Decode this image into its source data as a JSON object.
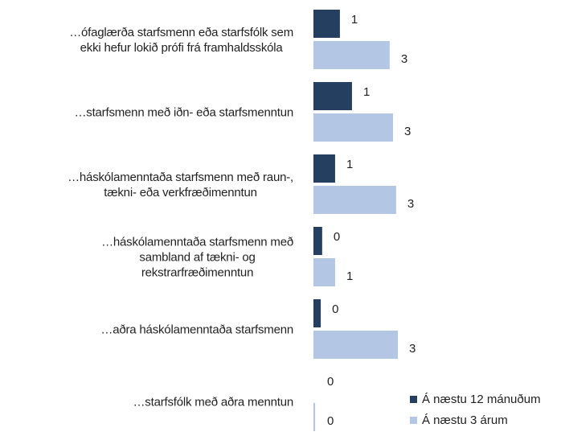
{
  "chart_data": {
    "type": "hbar",
    "categories": [
      "…ófaglærða starfsmenn eða starfsfólk sem\nekki hefur lokið prófi frá framhaldsskóla",
      "…starfsmenn með iðn- eða starfsmenntun",
      "…háskólamenntaða starfsmenn með raun-,\ntækni- eða verkfræðimenntun",
      "…háskólamenntaða starfsmenn með\nsambland af tækni- og\nrekstrarfræðimenntun",
      "…aðra háskólamenntaða starfsmenn",
      "…starfsfólk með aðra menntun"
    ],
    "series": [
      {
        "name": "Á næstu 12 mánuðum",
        "color": "#243f60",
        "values": [
          0.94,
          1.37,
          0.77,
          0.31,
          0.26,
          0
        ],
        "value_labels": [
          "1",
          "1",
          "1",
          "0",
          "0",
          "0"
        ]
      },
      {
        "name": "Á næstu 3 árum",
        "color": "#b3c6e4",
        "values": [
          2.71,
          2.83,
          2.94,
          0.77,
          3.0,
          0.06
        ],
        "value_labels": [
          "3",
          "3",
          "3",
          "1",
          "3",
          "0"
        ]
      }
    ],
    "legend": "bottom-right"
  }
}
